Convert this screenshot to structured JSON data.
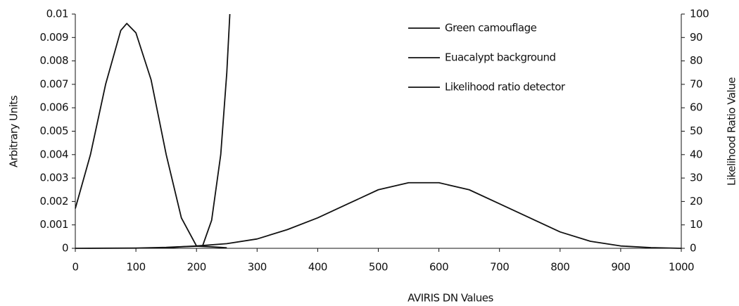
{
  "chart_data": {
    "type": "line",
    "xlabel": "AVIRIS DN Values",
    "ylabel": "Arbitrary Units",
    "y2label": "Likelihood Ratio Value",
    "xlim": [
      0,
      1000
    ],
    "xticks": [
      0,
      100,
      200,
      300,
      400,
      500,
      600,
      700,
      800,
      900,
      1000
    ],
    "ylim": [
      0,
      0.01
    ],
    "yticks": [
      0,
      0.001,
      0.002,
      0.003,
      0.004,
      0.005,
      0.006,
      0.007,
      0.008,
      0.009,
      0.01
    ],
    "y2lim": [
      0,
      100
    ],
    "y2ticks": [
      0,
      10,
      20,
      30,
      40,
      50,
      60,
      70,
      80,
      90,
      100
    ],
    "grid": false,
    "legend": "upper right",
    "series": [
      {
        "name": "Green camouflage",
        "color": "#111111",
        "x": [
          140,
          160,
          180,
          200,
          220,
          240,
          250
        ],
        "values": [
          2e-05,
          4e-05,
          7e-05,
          9e-05,
          7e-05,
          4e-05,
          2e-05
        ]
      },
      {
        "name": "Euacalypt background",
        "color": "#111111",
        "x": [
          0,
          100,
          150,
          200,
          250,
          300,
          350,
          400,
          450,
          500,
          550,
          575,
          600,
          650,
          700,
          750,
          800,
          850,
          900,
          950,
          1000
        ],
        "values": [
          0,
          1e-05,
          4e-05,
          0.0001,
          0.0002,
          0.0004,
          0.0008,
          0.0013,
          0.0019,
          0.0025,
          0.0028,
          0.0028,
          0.0028,
          0.0025,
          0.0019,
          0.0013,
          0.0007,
          0.0003,
          0.0001,
          3e-05,
          0
        ]
      },
      {
        "name": "Likelihood ratio detector",
        "color": "#111111",
        "axis": "y2",
        "x": [
          0,
          25,
          50,
          75,
          85,
          100,
          125,
          150,
          175,
          200,
          210,
          225,
          240,
          250,
          255
        ],
        "values": [
          17,
          40,
          70,
          93,
          96,
          92,
          72,
          40,
          13,
          1,
          1,
          12,
          40,
          75,
          100
        ]
      }
    ]
  }
}
